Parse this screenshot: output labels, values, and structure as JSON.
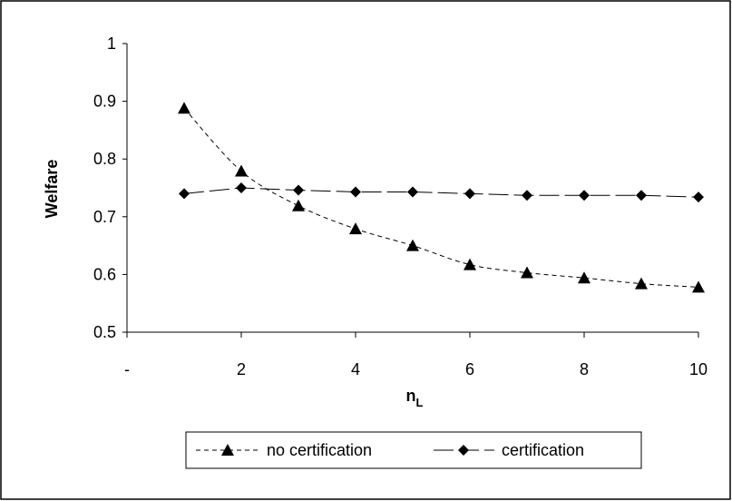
{
  "chart_data": {
    "type": "line",
    "xlabel": "n",
    "xlabel_subscript": "L",
    "ylabel": "Welfare",
    "ylim": [
      0.5,
      1
    ],
    "yticks": [
      "0.5",
      "0.6",
      "0.7",
      "0.8",
      "0.9",
      "1"
    ],
    "xlim": [
      0,
      10
    ],
    "xticks": [
      {
        "value": 0,
        "label": "-"
      },
      {
        "value": 2,
        "label": "2"
      },
      {
        "value": 4,
        "label": "4"
      },
      {
        "value": 6,
        "label": "6"
      },
      {
        "value": 8,
        "label": "8"
      },
      {
        "value": 10,
        "label": "10"
      }
    ],
    "grid": false,
    "legend_position": "bottom",
    "x": [
      1,
      2,
      3,
      4,
      5,
      6,
      7,
      8,
      9,
      10
    ],
    "series": [
      {
        "name": "no certification",
        "marker": "triangle",
        "line_style": "dashed",
        "values": [
          0.888,
          0.779,
          0.719,
          0.679,
          0.65,
          0.617,
          0.603,
          0.594,
          0.584,
          0.578
        ]
      },
      {
        "name": "certification",
        "marker": "diamond",
        "line_style": "long-dash",
        "values": [
          0.74,
          0.75,
          0.746,
          0.743,
          0.743,
          0.74,
          0.737,
          0.737,
          0.737,
          0.734
        ]
      }
    ],
    "colors": {
      "line": "#000000",
      "background": "#ffffff",
      "border": "#000000"
    }
  }
}
